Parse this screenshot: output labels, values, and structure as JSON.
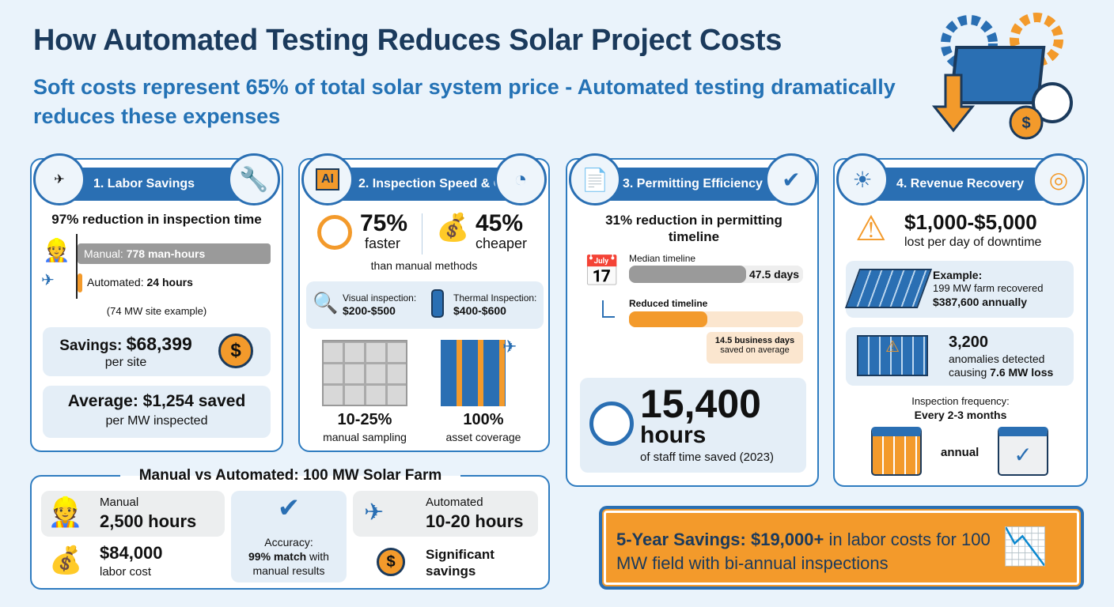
{
  "title": "How Automated Testing Reduces Solar Project Costs",
  "subtitle": "Soft costs represent 65% of total solar system price - Automated testing dramatically reduces these expenses",
  "colors": {
    "navy": "#1b3a5c",
    "blue": "#2a6fb3",
    "orange": "#f39a2b",
    "light": "#e4eef7"
  },
  "card1": {
    "title": "1. Labor Savings",
    "headline": "97% reduction in inspection time",
    "manual_label": "Manual: ",
    "manual_value": "778 man-hours",
    "auto_label": "Automated: ",
    "auto_value": "24 hours",
    "note": "(74 MW site example)",
    "savings_label": "Savings: ",
    "savings_value": "$68,399",
    "savings_unit": "per site",
    "avg_label": "Average: ",
    "avg_value": "$1,254 saved",
    "avg_unit": "per MW inspected"
  },
  "card2": {
    "title": "2. Inspection Speed & Cost",
    "faster_pct": "75%",
    "faster": "faster",
    "cheaper_pct": "45%",
    "cheaper": "cheaper",
    "than": "than manual methods",
    "visual_label": "Visual inspection:",
    "visual_price": "$200-$500",
    "thermal_label": "Thermal Inspection:",
    "thermal_price": "$400-$600",
    "sampling_pct": "10-25%",
    "sampling": "manual sampling",
    "coverage_pct": "100%",
    "coverage": "asset coverage"
  },
  "card3": {
    "title": "3. Permitting Efficiency",
    "headline": "31% reduction in permitting timeline",
    "median_label": "Median timeline",
    "median_value": "47.5 days",
    "reduced_label": "Reduced timeline",
    "reduced_fraction": 0.31,
    "saved_value": "14.5 business days",
    "saved_text": "saved on average",
    "hours": "15,400",
    "hours_unit": "hours",
    "hours_text": "of staff time saved (2023)"
  },
  "card4": {
    "title": "4. Revenue Recovery",
    "loss": "$1,000-$5,000",
    "loss_text": "lost per day of downtime",
    "example_label": "Example:",
    "example_text": "199 MW farm recovered",
    "example_value": "$387,600 annually",
    "anomalies": "3,200",
    "anomalies_text": "anomalies detected",
    "anomalies_cause": "causing ",
    "anomalies_loss": "7.6 MW loss",
    "freq_label": "Inspection frequency:",
    "freq_value": "Every 2-3 months",
    "annual": "annual"
  },
  "compare": {
    "title": "Manual vs Automated: 100 MW Solar Farm",
    "manual_label": "Manual",
    "manual_hours": "2,500 hours",
    "manual_cost": "$84,000",
    "manual_cost_label": "labor cost",
    "accuracy_label": "Accuracy:",
    "accuracy_value": "99% match",
    "accuracy_rest": " with manual results",
    "auto_label": "Automated",
    "auto_hours": "10-20 hours",
    "auto_savings": "Significant savings"
  },
  "banner": {
    "bold": "5-Year Savings: $19,000+",
    "rest": " in labor costs for 100 MW field with bi-annual inspections"
  }
}
